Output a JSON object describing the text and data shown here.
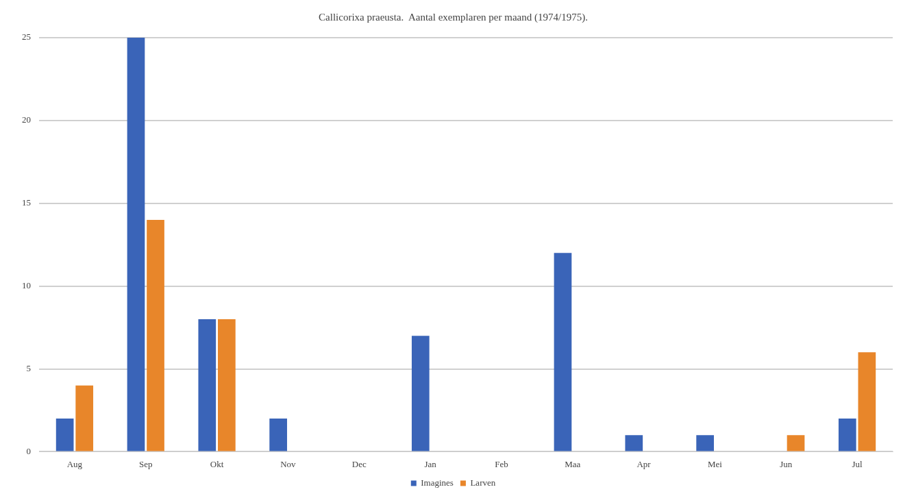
{
  "chart_data": {
    "type": "bar",
    "title": "Callicorixa praeusta.  Aantal exemplaren per maand (1974/1975).",
    "categories": [
      "Aug",
      "Sep",
      "Okt",
      "Nov",
      "Dec",
      "Jan",
      "Feb",
      "Maa",
      "Apr",
      "Mei",
      "Jun",
      "Jul"
    ],
    "series": [
      {
        "name": "Imagines",
        "color": "#3a64b8",
        "values": [
          2,
          25,
          8,
          2,
          0,
          7,
          0,
          12,
          1,
          1,
          0,
          2
        ]
      },
      {
        "name": "Larven",
        "color": "#e8862a",
        "values": [
          4,
          14,
          8,
          0,
          0,
          0,
          0,
          0,
          0,
          0,
          1,
          6
        ]
      }
    ],
    "ylim": [
      0,
      25
    ],
    "yticks": [
      0,
      5,
      10,
      15,
      20,
      25
    ],
    "grid": "y",
    "legend": "bottom"
  }
}
